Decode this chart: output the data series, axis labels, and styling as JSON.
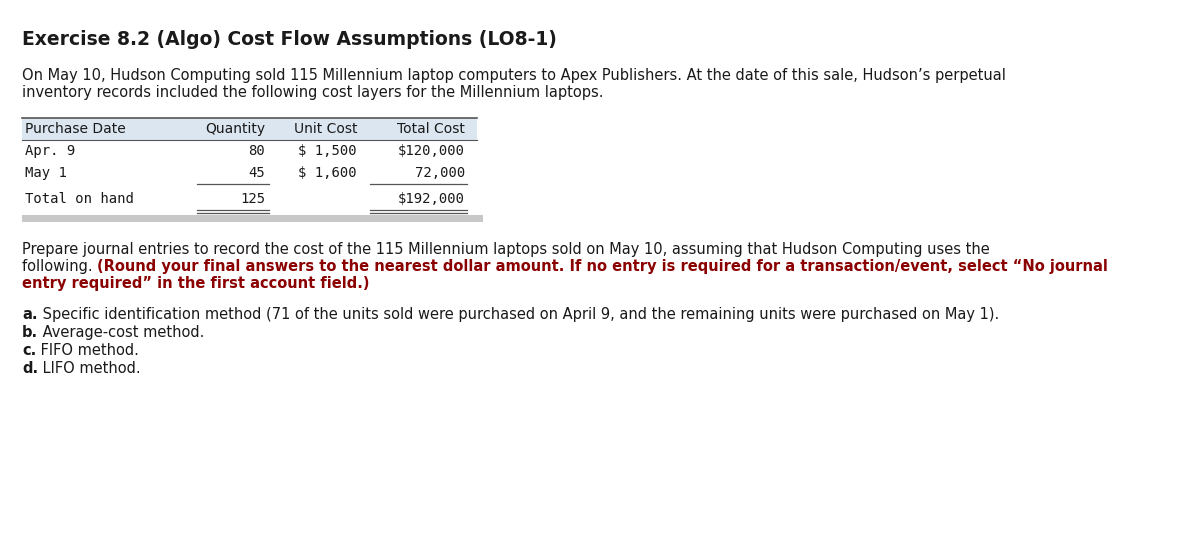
{
  "title": "Exercise 8.2 (Algo) Cost Flow Assumptions (LO8-1)",
  "intro_line1": "On May 10, Hudson Computing sold 115 Millennium laptop computers to Apex Publishers. At the date of this sale, Hudson’s perpetual",
  "intro_line2": "inventory records included the following cost layers for the Millennium laptops.",
  "table_headers": [
    "Purchase Date",
    "Quantity",
    "Unit Cost",
    "Total Cost"
  ],
  "table_row1": [
    "Apr. 9",
    "80",
    "$ 1,500",
    "$120,000"
  ],
  "table_row2": [
    "May 1",
    "45",
    "$ 1,600",
    "72,000"
  ],
  "table_total": [
    "Total on hand",
    "125",
    "",
    "$192,000"
  ],
  "prep_line1": "Prepare journal entries to record the cost of the 115 Millennium laptops sold on May 10, assuming that Hudson Computing uses the",
  "prep_line2_normal": "following. ",
  "prep_line2_bold": "(Round your final answers to the nearest dollar amount. If no entry is required for a transaction/event, select “No journal",
  "prep_line3_bold": "entry required” in the first account field.)",
  "item_a_bold": "a.",
  "item_a_text": " Specific identification method (71 of the units sold were purchased on April 9, and the remaining units were purchased on May 1).",
  "item_b_bold": "b.",
  "item_b_text": " Average-cost method.",
  "item_c_bold": "c.",
  "item_c_text": " FIFO method.",
  "item_d_bold": "d.",
  "item_d_text": " LIFO method.",
  "bg_color": "#ffffff",
  "text_color": "#1a1a1a",
  "bold_red_color": "#8B0000",
  "table_header_bg": "#dce6f1",
  "table_shadow_color": "#c8c8c8",
  "table_line_color": "#555555",
  "mono_font": "DejaVu Sans Mono",
  "sans_font": "DejaVu Sans",
  "title_fontsize": 13.5,
  "body_fontsize": 10.5,
  "table_fontsize": 10.0,
  "figw": 11.85,
  "figh": 5.52,
  "dpi": 100
}
